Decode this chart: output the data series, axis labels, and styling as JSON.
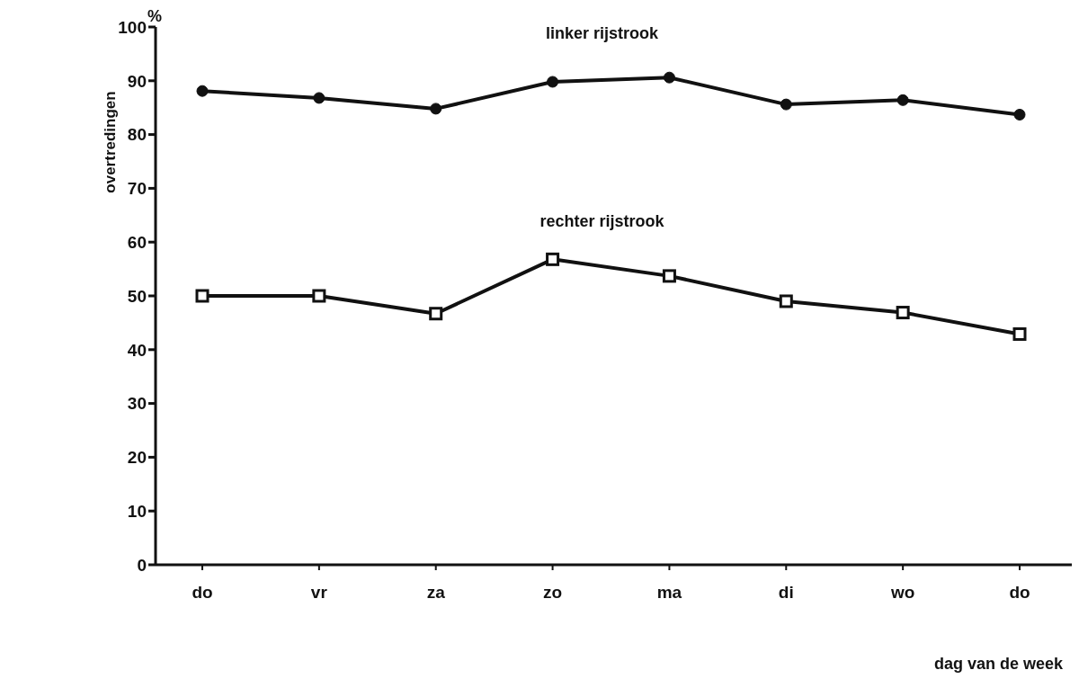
{
  "chart_data": {
    "type": "line",
    "ylabel": "overtredingen",
    "xlabel": "dag van de week",
    "annotations": [
      "%"
    ],
    "categories": [
      "do",
      "vr",
      "za",
      "zo",
      "ma",
      "di",
      "wo",
      "do"
    ],
    "series": [
      {
        "name": "linker rijstrook",
        "color": "#111111",
        "marker": "circle",
        "values": [
          88.1,
          86.8,
          84.8,
          89.8,
          90.6,
          85.6,
          86.4,
          83.7
        ]
      },
      {
        "name": "rechter rijstrook",
        "color": "#111111",
        "marker": "square",
        "values": [
          50,
          50,
          46.7,
          56.8,
          53.7,
          49,
          46.9,
          42.9
        ]
      }
    ],
    "ylim": [
      0,
      100
    ],
    "yticks": [
      0,
      10,
      20,
      30,
      40,
      50,
      60,
      70,
      80,
      90,
      100
    ],
    "grid": false,
    "legend": false,
    "line_style": "solid"
  }
}
